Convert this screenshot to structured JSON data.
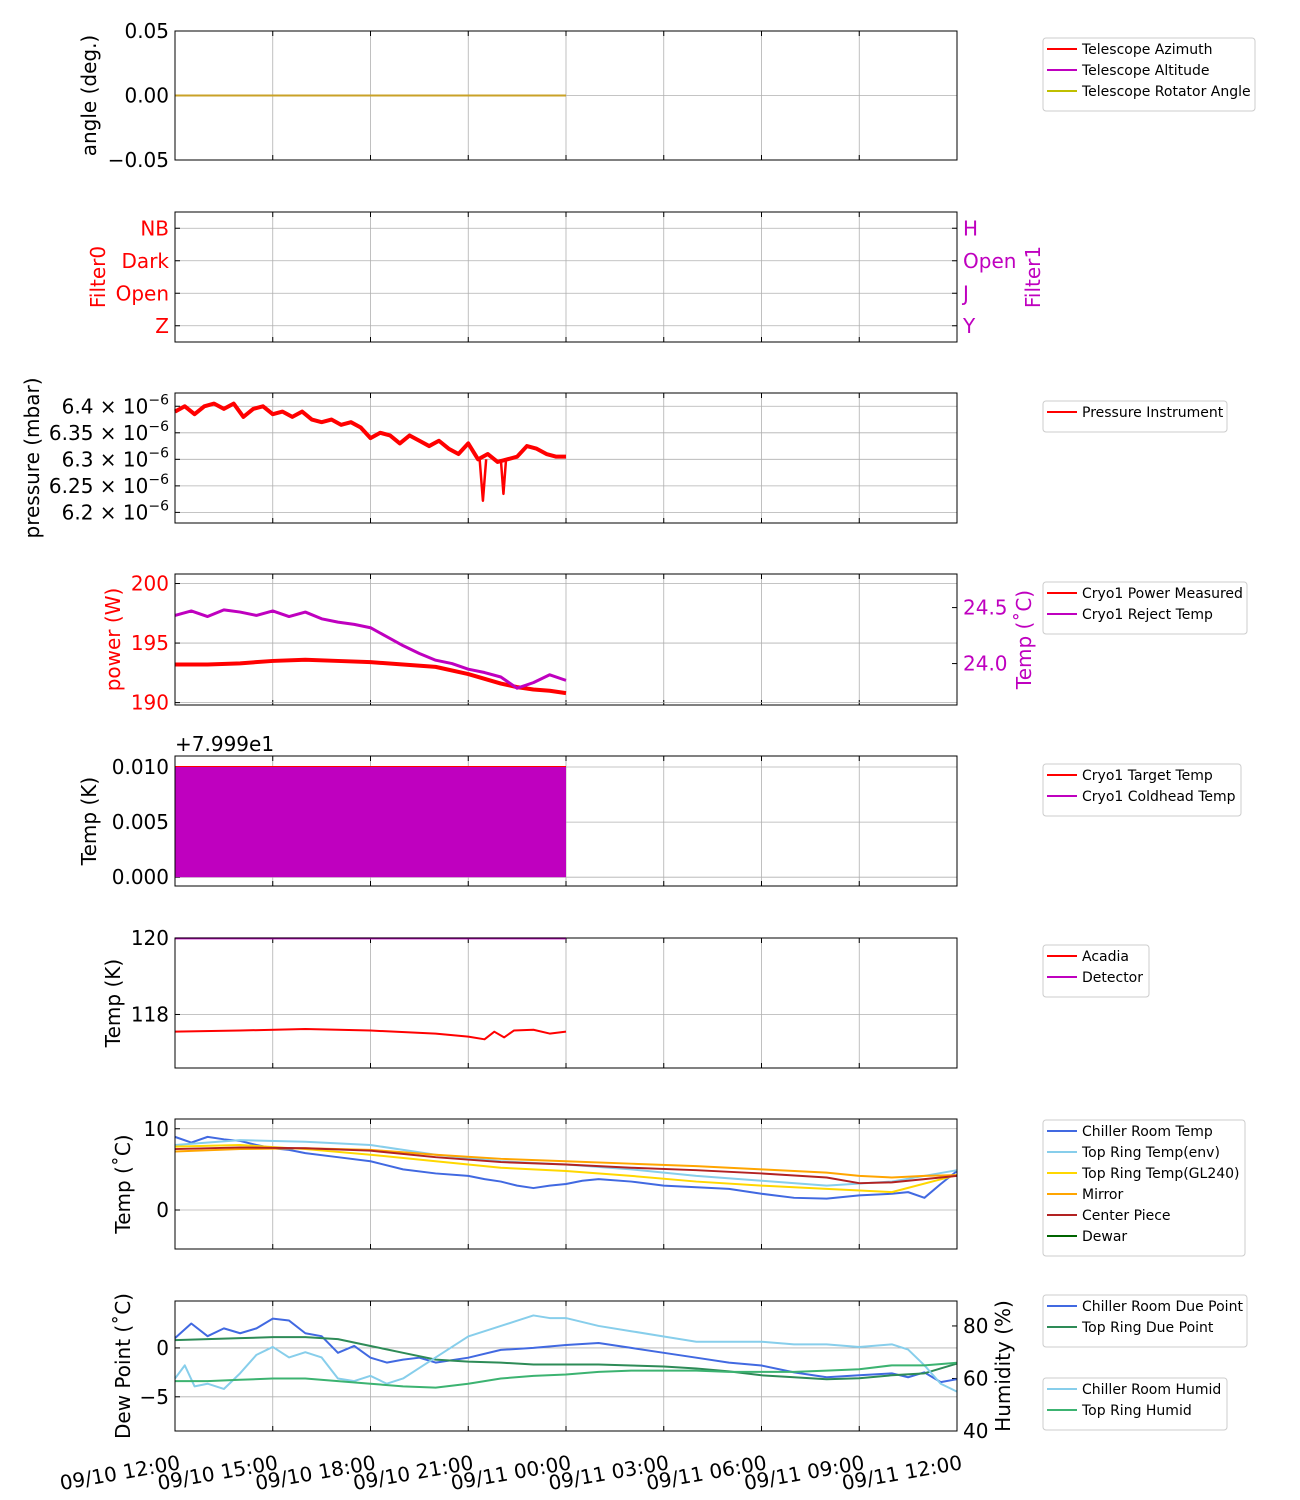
{
  "time_axis": {
    "tick_labels": [
      "09/10 12:00",
      "09/10 15:00",
      "09/10 18:00",
      "09/10 21:00",
      "09/11 00:00",
      "09/11 03:00",
      "09/11 06:00",
      "09/11 09:00",
      "09/11 12:00"
    ]
  },
  "chart_data": [
    {
      "id": "angle",
      "type": "line",
      "ylabel": "angle (deg.)",
      "ylim": [
        -0.05,
        0.05
      ],
      "yticks": [
        {
          "v": 0.05,
          "label": "0.05"
        },
        {
          "v": 0.0,
          "label": "0.00"
        },
        {
          "v": -0.05,
          "label": "−0.05"
        }
      ],
      "grid": true,
      "legend_placement": "outside-right",
      "series": [
        {
          "name": "Telescope Azimuth",
          "color": "#ff0000",
          "x": [
            0,
            12
          ],
          "y": [
            0,
            0
          ]
        },
        {
          "name": "Telescope Altitude",
          "color": "#bf00bf",
          "x": [
            0,
            12
          ],
          "y": [
            0,
            0
          ]
        },
        {
          "name": "Telescope Rotator Angle",
          "color": "#bfbf00",
          "x": [
            0,
            12
          ],
          "y": [
            0,
            0
          ],
          "display_color": "#c9a227"
        }
      ]
    },
    {
      "id": "filter",
      "type": "line",
      "ylabel": "Filter0",
      "ylabel_right": "Filter1",
      "ylabel_color": "#ff0000",
      "ylabel_right_color": "#bf00bf",
      "ylim": [
        -0.5,
        3.5
      ],
      "yticks": [
        {
          "v": 3,
          "label": "NB"
        },
        {
          "v": 2,
          "label": "Dark"
        },
        {
          "v": 1,
          "label": "Open"
        },
        {
          "v": 0,
          "label": "Z"
        }
      ],
      "yticks_right": [
        {
          "v": 3,
          "label": "H"
        },
        {
          "v": 2,
          "label": "Open"
        },
        {
          "v": 1,
          "label": "J"
        },
        {
          "v": 0,
          "label": "Y"
        }
      ],
      "grid": true,
      "series": []
    },
    {
      "id": "pressure",
      "type": "line",
      "ylabel": "pressure (mbar)",
      "ylim": [
        6.18,
        6.425
      ],
      "ytick_exponent": "−6",
      "yticks": [
        {
          "v": 6.4,
          "label": "6.4 × 10"
        },
        {
          "v": 6.35,
          "label": "6.35 × 10"
        },
        {
          "v": 6.3,
          "label": "6.3 × 10"
        },
        {
          "v": 6.25,
          "label": "6.25 × 10"
        },
        {
          "v": 6.2,
          "label": "6.2 × 10"
        }
      ],
      "grid": true,
      "legend_placement": "outside-right",
      "series": [
        {
          "name": "Pressure Instrument",
          "color": "#ff0000",
          "width": 4,
          "x": [
            0,
            0.3,
            0.6,
            0.9,
            1.2,
            1.5,
            1.8,
            2.1,
            2.4,
            2.7,
            3.0,
            3.3,
            3.6,
            3.9,
            4.2,
            4.5,
            4.8,
            5.1,
            5.4,
            5.7,
            6.0,
            6.3,
            6.6,
            6.9,
            7.2,
            7.5,
            7.8,
            8.1,
            8.4,
            8.7,
            9.0,
            9.3,
            9.6,
            9.9,
            10.2,
            10.5,
            10.8,
            11.1,
            11.4,
            11.7,
            12.0
          ],
          "y": [
            6.39,
            6.4,
            6.385,
            6.4,
            6.405,
            6.395,
            6.405,
            6.38,
            6.395,
            6.4,
            6.385,
            6.39,
            6.38,
            6.39,
            6.375,
            6.37,
            6.375,
            6.365,
            6.37,
            6.36,
            6.34,
            6.35,
            6.345,
            6.33,
            6.345,
            6.335,
            6.325,
            6.335,
            6.32,
            6.31,
            6.33,
            6.3,
            6.31,
            6.295,
            6.3,
            6.305,
            6.325,
            6.32,
            6.31,
            6.305,
            6.305
          ]
        },
        {
          "name": "",
          "color": "#ff0000",
          "width": 2.5,
          "x": [
            9.35,
            9.45,
            9.55
          ],
          "y": [
            6.3,
            6.222,
            6.3
          ]
        },
        {
          "name": "",
          "color": "#ff0000",
          "width": 2.5,
          "x": [
            10.0,
            10.08,
            10.16
          ],
          "y": [
            6.3,
            6.235,
            6.3
          ]
        }
      ]
    },
    {
      "id": "cryo-power",
      "type": "line",
      "ylabel": "power (W)",
      "ylabel_color": "#ff0000",
      "ylabel_right": "Temp (˚C)",
      "ylabel_right_color": "#bf00bf",
      "ylim": [
        189.8,
        200.8
      ],
      "ylim_right": [
        23.63,
        24.8
      ],
      "yticks": [
        {
          "v": 200,
          "label": "200"
        },
        {
          "v": 195,
          "label": "195"
        },
        {
          "v": 190,
          "label": "190"
        }
      ],
      "yticks_right": [
        {
          "v": 24.5,
          "label": "24.5"
        },
        {
          "v": 24.0,
          "label": "24.0"
        }
      ],
      "grid": true,
      "legend_placement": "outside-right",
      "series": [
        {
          "name": "Cryo1 Power Measured",
          "color": "#ff0000",
          "width": 4,
          "x": [
            0,
            1,
            2,
            3,
            4,
            5,
            6,
            7,
            8,
            9,
            9.5,
            10,
            10.5,
            11,
            11.5,
            12
          ],
          "y": [
            193.2,
            193.2,
            193.3,
            193.5,
            193.6,
            193.5,
            193.4,
            193.2,
            193.0,
            192.4,
            192.0,
            191.6,
            191.3,
            191.1,
            191.0,
            190.8
          ]
        },
        {
          "name": "Cryo1 Reject Temp",
          "color": "#bf00bf",
          "axis": "right",
          "width": 3,
          "x": [
            0,
            0.5,
            1.0,
            1.5,
            2.0,
            2.5,
            3.0,
            3.5,
            4.0,
            4.5,
            5.0,
            5.5,
            6.0,
            6.5,
            7.0,
            7.5,
            8.0,
            8.5,
            9.0,
            9.5,
            10.0,
            10.5,
            11.0,
            11.5,
            12.0
          ],
          "y": [
            24.43,
            24.47,
            24.42,
            24.48,
            24.46,
            24.43,
            24.47,
            24.42,
            24.46,
            24.4,
            24.37,
            24.35,
            24.32,
            24.24,
            24.16,
            24.09,
            24.03,
            24.0,
            23.95,
            23.92,
            23.88,
            23.78,
            23.83,
            23.9,
            23.85
          ]
        }
      ]
    },
    {
      "id": "cryo-target",
      "type": "area",
      "ylabel": "Temp (K)",
      "offset_text": "+7.999e1",
      "ylim": [
        -0.0008,
        0.011
      ],
      "yticks": [
        {
          "v": 0.01,
          "label": "0.010"
        },
        {
          "v": 0.005,
          "label": "0.005"
        },
        {
          "v": 0.0,
          "label": "0.000"
        }
      ],
      "grid": true,
      "legend_placement": "outside-right",
      "series": [
        {
          "name": "Cryo1 Target Temp",
          "color": "#ff0000",
          "x": [
            0,
            12
          ],
          "y": [
            0.01,
            0.01
          ]
        },
        {
          "name": "Cryo1 Coldhead Temp",
          "color": "#bf00bf",
          "fill": true,
          "x": [
            0,
            12
          ],
          "y_low": [
            0.0,
            0.0
          ],
          "y_high": [
            0.01,
            0.01
          ]
        }
      ]
    },
    {
      "id": "acadia",
      "type": "line",
      "ylabel": "Temp (K)",
      "ylim": [
        116.6,
        120.0
      ],
      "yticks": [
        {
          "v": 120,
          "label": "120"
        },
        {
          "v": 118,
          "label": "118"
        }
      ],
      "grid": true,
      "legend_placement": "outside-right",
      "series": [
        {
          "name": "Acadia",
          "color": "#ff0000",
          "width": 2,
          "x": [
            0,
            2,
            4,
            6,
            8,
            9,
            9.5,
            9.8,
            10.1,
            10.4,
            11,
            11.5,
            12
          ],
          "y": [
            117.55,
            117.58,
            117.62,
            117.58,
            117.5,
            117.42,
            117.35,
            117.55,
            117.4,
            117.58,
            117.6,
            117.5,
            117.55
          ]
        },
        {
          "name": "Detector",
          "color": "#bf00bf",
          "width": 2,
          "x": [
            0,
            12
          ],
          "y": [
            119.99,
            119.99
          ]
        }
      ]
    },
    {
      "id": "env-temp",
      "type": "line",
      "ylabel": "Temp (˚C)",
      "ylim": [
        -4.8,
        11.2
      ],
      "yticks": [
        {
          "v": 10,
          "label": "10"
        },
        {
          "v": 0,
          "label": "0"
        }
      ],
      "grid": true,
      "legend_placement": "outside-right",
      "series": [
        {
          "name": "Chiller Room Temp",
          "color": "#4169e1",
          "width": 2,
          "x": [
            0,
            0.5,
            1,
            1.5,
            2,
            2.5,
            3,
            3.5,
            4,
            5,
            6,
            7,
            8,
            9,
            9.5,
            10,
            10.5,
            11,
            11.5,
            12,
            12.5,
            13,
            14,
            15,
            16,
            17,
            18,
            19,
            20,
            21,
            22,
            22.5,
            23,
            23.5,
            24
          ],
          "y": [
            9.0,
            8.3,
            9.0,
            8.7,
            8.5,
            8.0,
            7.6,
            7.4,
            7.0,
            6.5,
            6.0,
            5.0,
            4.5,
            4.2,
            3.8,
            3.5,
            3.0,
            2.7,
            3.0,
            3.2,
            3.6,
            3.8,
            3.5,
            3.0,
            2.8,
            2.6,
            2.0,
            1.5,
            1.4,
            1.8,
            2.0,
            2.2,
            1.5,
            3.2,
            4.8
          ]
        },
        {
          "name": "Top Ring Temp(env)",
          "color": "#87ceeb",
          "width": 2,
          "x": [
            0,
            2,
            4,
            6,
            8,
            10,
            12,
            14,
            16,
            18,
            20,
            22,
            24
          ],
          "y": [
            8.0,
            8.6,
            8.4,
            8.0,
            6.8,
            6.0,
            5.6,
            5.0,
            4.2,
            3.6,
            3.0,
            3.5,
            4.9
          ]
        },
        {
          "name": "Top Ring Temp(GL240)",
          "color": "#ffd700",
          "width": 2,
          "x": [
            0,
            2,
            4,
            6,
            8,
            10,
            12,
            14,
            16,
            18,
            20,
            22,
            24
          ],
          "y": [
            7.8,
            8.0,
            7.5,
            6.8,
            6.0,
            5.2,
            4.8,
            4.2,
            3.5,
            3.0,
            2.6,
            2.2,
            4.3
          ]
        },
        {
          "name": "Mirror",
          "color": "#ffa500",
          "width": 2,
          "x": [
            0,
            2,
            4,
            6,
            8,
            10,
            12,
            14,
            16,
            18,
            20,
            21,
            22,
            23,
            24
          ],
          "y": [
            7.2,
            7.5,
            7.6,
            7.4,
            6.8,
            6.3,
            6.0,
            5.7,
            5.4,
            5.0,
            4.6,
            4.2,
            4.0,
            4.2,
            4.3
          ]
        },
        {
          "name": "Center Piece",
          "color": "#b22222",
          "width": 2,
          "x": [
            0,
            2,
            4,
            6,
            8,
            10,
            12,
            14,
            16,
            18,
            20,
            21,
            22,
            23,
            24
          ],
          "y": [
            7.5,
            7.7,
            7.6,
            7.3,
            6.5,
            5.9,
            5.6,
            5.2,
            4.9,
            4.5,
            4.0,
            3.3,
            3.4,
            3.8,
            4.2
          ]
        },
        {
          "name": "Dewar",
          "color": "#006400",
          "width": 2,
          "x": [],
          "y": []
        }
      ]
    },
    {
      "id": "dew-point",
      "type": "line",
      "ylabel": "Dew Point (˚C)",
      "ylabel_right": "Humidity (%)",
      "ylim": [
        -8.5,
        4.8
      ],
      "ylim_right": [
        40,
        89.5
      ],
      "yticks": [
        {
          "v": 0,
          "label": "0"
        },
        {
          "v": -5,
          "label": "−5"
        }
      ],
      "yticks_right": [
        {
          "v": 80,
          "label": "80"
        },
        {
          "v": 60,
          "label": "60"
        },
        {
          "v": 40,
          "label": "40"
        }
      ],
      "grid": true,
      "legend_placement": "outside-right",
      "series": [
        {
          "name": "Chiller Room Due Point",
          "color": "#4169e1",
          "width": 2,
          "x": [
            0,
            0.5,
            1,
            1.5,
            2,
            2.5,
            3,
            3.5,
            4,
            4.5,
            5,
            5.5,
            6,
            6.5,
            7,
            7.5,
            8,
            9,
            10,
            11,
            12,
            13,
            14,
            15,
            16,
            17,
            18,
            19,
            20,
            21,
            22,
            22.5,
            23,
            23.5,
            24
          ],
          "y": [
            1.0,
            2.5,
            1.2,
            2.0,
            1.5,
            2.0,
            3.0,
            2.8,
            1.5,
            1.2,
            -0.5,
            0.2,
            -1.0,
            -1.5,
            -1.2,
            -1.0,
            -1.5,
            -1.0,
            -0.2,
            0.0,
            0.3,
            0.5,
            0.0,
            -0.5,
            -1.0,
            -1.5,
            -1.8,
            -2.5,
            -3.0,
            -2.8,
            -2.6,
            -3.0,
            -2.5,
            -3.5,
            -3.2
          ]
        },
        {
          "name": "Top Ring Due Point",
          "color": "#2e8b57",
          "width": 2,
          "x": [
            0,
            1,
            2,
            3,
            4,
            5,
            6,
            7,
            8,
            9,
            10,
            11,
            12,
            13,
            14,
            15,
            16,
            17,
            18,
            19,
            20,
            21,
            22,
            23,
            24
          ],
          "y": [
            0.8,
            0.9,
            1.0,
            1.1,
            1.1,
            0.9,
            0.2,
            -0.5,
            -1.2,
            -1.4,
            -1.5,
            -1.7,
            -1.7,
            -1.7,
            -1.8,
            -1.9,
            -2.1,
            -2.4,
            -2.8,
            -3.0,
            -3.2,
            -3.1,
            -2.8,
            -2.6,
            -1.6
          ]
        },
        {
          "name": "Chiller Room Humid",
          "color": "#87ceeb",
          "width": 2,
          "axis": "right",
          "x": [
            0,
            0.3,
            0.6,
            1,
            1.5,
            2,
            2.5,
            3,
            3.5,
            4,
            4.5,
            5,
            5.5,
            6,
            6.5,
            7,
            7.5,
            8,
            8.5,
            9,
            9.5,
            10,
            10.5,
            11,
            11.5,
            12,
            13,
            14,
            15,
            16,
            17,
            18,
            19,
            20,
            21,
            22,
            22.5,
            23,
            23.5,
            24
          ],
          "y": [
            60,
            65,
            57,
            58,
            56,
            62,
            69,
            72,
            68,
            70,
            68,
            60,
            59,
            61,
            58,
            60,
            64,
            68,
            72,
            76,
            78,
            80,
            82,
            84,
            83,
            83,
            80,
            78,
            76,
            74,
            74,
            74,
            73,
            73,
            72,
            73,
            71,
            65,
            58,
            55
          ]
        },
        {
          "name": "Top Ring Humid",
          "color": "#3cb371",
          "width": 2,
          "axis": "right",
          "x": [
            0,
            1,
            2,
            3,
            4,
            5,
            6,
            7,
            8,
            9,
            10,
            11,
            12,
            13,
            14,
            15,
            16,
            17,
            18,
            19,
            20,
            21,
            22,
            23,
            24
          ],
          "y": [
            59,
            59,
            59.5,
            60,
            60,
            59,
            58,
            57,
            56.5,
            58,
            60,
            61,
            61.5,
            62.5,
            63,
            63,
            63,
            62.5,
            62.5,
            62.5,
            63,
            63.5,
            65,
            65,
            66
          ]
        }
      ]
    }
  ]
}
